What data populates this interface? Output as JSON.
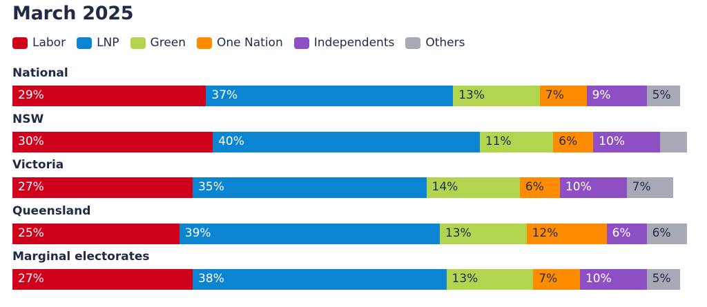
{
  "chart_data": {
    "type": "bar",
    "orientation": "horizontal",
    "stacked": true,
    "title": "March 2025",
    "legend_placement": "top-left",
    "grid": false,
    "categories": [
      "National",
      "NSW",
      "Victoria",
      "Queensland",
      "Marginal electorates"
    ],
    "series": [
      {
        "name": "Labor",
        "color": "#d0021b",
        "label_color": "#ffffff",
        "values": [
          29,
          30,
          27,
          25,
          27
        ],
        "labels": [
          "29%",
          "30%",
          "27%",
          "25%",
          "27%"
        ]
      },
      {
        "name": "LNP",
        "color": "#0b84d1",
        "label_color": "#ffffff",
        "values": [
          37,
          40,
          35,
          39,
          38
        ],
        "labels": [
          "37%",
          "40%",
          "35%",
          "39%",
          "38%"
        ]
      },
      {
        "name": "Green",
        "color": "#b2d44e",
        "label_color": "#1f2a44",
        "values": [
          13,
          11,
          14,
          13,
          13
        ],
        "labels": [
          "13%",
          "11%",
          "14%",
          "13%",
          "13%"
        ]
      },
      {
        "name": "One Nation",
        "color": "#ff8c00",
        "label_color": "#1f2a44",
        "values": [
          7,
          6,
          6,
          12,
          7
        ],
        "labels": [
          "7%",
          "6%",
          "6%",
          "12%",
          "7%"
        ]
      },
      {
        "name": "Independents",
        "color": "#8e4fc4",
        "label_color": "#ffffff",
        "values": [
          9,
          10,
          10,
          6,
          10
        ],
        "labels": [
          "9%",
          "10%",
          "10%",
          "6%",
          "10%"
        ]
      },
      {
        "name": "Others",
        "color": "#a7a9b6",
        "label_color": "#1f2a44",
        "values": [
          5,
          4,
          7,
          6,
          5
        ],
        "labels": [
          "5%",
          "",
          "7%",
          "6%",
          "5%"
        ]
      }
    ]
  }
}
